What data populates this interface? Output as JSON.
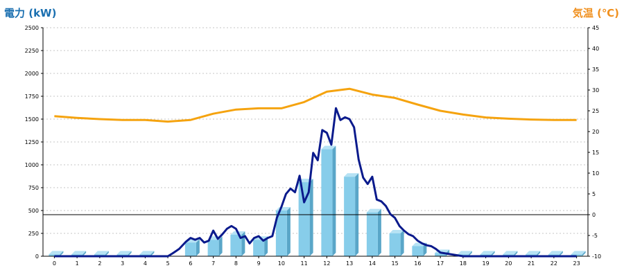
{
  "chart_data": {
    "type": "bar+line",
    "left_axis_title": "電力 (kW)",
    "right_axis_title": "気温 (℃)",
    "left_axis_color": "#1a6fb0",
    "right_axis_color": "#f0901e",
    "left_ylim": [
      0,
      2500
    ],
    "left_ticks": [
      "0",
      "250",
      "500",
      "750",
      "1000",
      "1250",
      "1500",
      "1750",
      "2000",
      "2250",
      "2500"
    ],
    "right_ylim": [
      -10,
      45
    ],
    "right_ticks": [
      "-10",
      "-5",
      "0",
      "5",
      "10",
      "15",
      "20",
      "25",
      "30",
      "35",
      "40",
      "45"
    ],
    "xlim": [
      -0.5,
      23.5
    ],
    "x_ticks": [
      "0",
      "1",
      "2",
      "3",
      "4",
      "5",
      "6",
      "7",
      "8",
      "9",
      "10",
      "11",
      "12",
      "13",
      "14",
      "15",
      "16",
      "17",
      "18",
      "19",
      "20",
      "21",
      "22",
      "23"
    ],
    "grid": true,
    "bar_color": "#87cdea",
    "bars": [
      20,
      20,
      20,
      20,
      20,
      0,
      150,
      180,
      235,
      180,
      500,
      810,
      1170,
      870,
      480,
      250,
      110,
      35,
      20,
      20,
      20,
      20,
      20,
      20
    ],
    "temperature_color": "#f5a30f",
    "temperature": {
      "x": [
        0,
        1,
        2,
        3,
        4,
        5,
        6,
        7,
        8,
        9,
        10,
        11,
        12,
        13,
        14,
        15,
        16,
        17,
        18,
        19,
        20,
        21,
        22,
        23
      ],
      "y": [
        23.7,
        23.3,
        23.0,
        22.8,
        22.8,
        22.4,
        22.8,
        24.3,
        25.3,
        25.6,
        25.6,
        27.1,
        29.6,
        30.3,
        28.9,
        28.1,
        26.5,
        25.0,
        24.1,
        23.4,
        23.1,
        22.9,
        22.8,
        22.8
      ]
    },
    "power_color": "#0a1a8c",
    "power": {
      "x": [
        0,
        1,
        2,
        3,
        4,
        5,
        5.2,
        5.5,
        5.8,
        6.0,
        6.2,
        6.4,
        6.6,
        6.8,
        7.0,
        7.2,
        7.4,
        7.6,
        7.8,
        8.0,
        8.2,
        8.4,
        8.6,
        8.8,
        9.0,
        9.2,
        9.4,
        9.6,
        9.8,
        10.0,
        10.2,
        10.4,
        10.6,
        10.8,
        11.0,
        11.2,
        11.4,
        11.6,
        11.8,
        12.0,
        12.2,
        12.4,
        12.6,
        12.8,
        13.0,
        13.2,
        13.4,
        13.6,
        13.8,
        14.0,
        14.2,
        14.4,
        14.6,
        14.8,
        15.0,
        15.2,
        15.4,
        15.6,
        15.8,
        16.0,
        16.2,
        16.4,
        16.6,
        16.8,
        17.0,
        18,
        19,
        20,
        21,
        22,
        23
      ],
      "y": [
        0,
        0,
        0,
        0,
        0,
        0,
        30,
        80,
        160,
        200,
        180,
        200,
        150,
        170,
        280,
        190,
        240,
        300,
        330,
        300,
        200,
        220,
        140,
        200,
        220,
        170,
        200,
        220,
        420,
        540,
        680,
        740,
        700,
        880,
        590,
        700,
        1130,
        1050,
        1380,
        1350,
        1220,
        1620,
        1490,
        1520,
        1500,
        1410,
        1060,
        860,
        790,
        870,
        620,
        600,
        550,
        460,
        420,
        330,
        280,
        240,
        220,
        170,
        140,
        120,
        110,
        80,
        40,
        0,
        0,
        0,
        0,
        0,
        0
      ]
    }
  }
}
